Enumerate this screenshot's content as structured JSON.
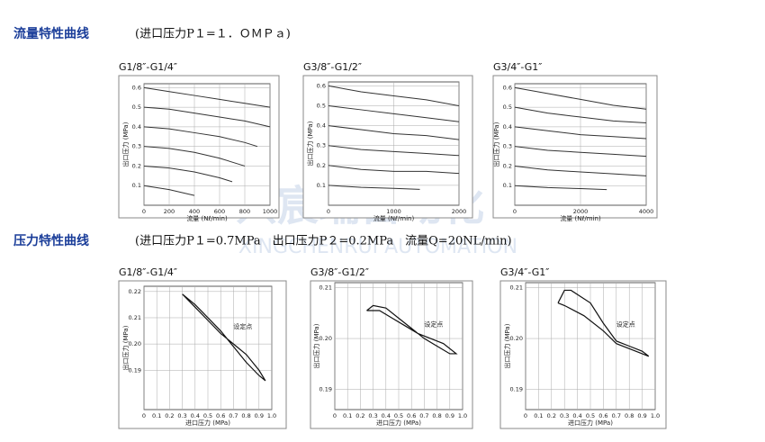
{
  "sections": [
    {
      "title": "流量特性曲线",
      "condition": "(进口压力P１=１．ＯＭＰａ)"
    },
    {
      "title": "压力特性曲线",
      "condition": "(进口压力P１=0.7MPa　出口压力P２=0.2MPa　流量Q=20NL/min)"
    }
  ],
  "watermark": {
    "name": "兴宸瑞自动化",
    "subtitle": "XINGCHENRUI AUTOMATION"
  },
  "chart_data": [
    {
      "type": "line",
      "title": "G1/8″-G1/4″",
      "xlabel": "流量 (Nℓ/min)",
      "ylabel": "出口压力 (MPa)",
      "xlim": [
        0,
        1000
      ],
      "ylim": [
        0,
        0.62
      ],
      "xticks": [
        0,
        200,
        400,
        600,
        800,
        1000
      ],
      "yticks": [
        0.1,
        0.2,
        0.3,
        0.4,
        0.5,
        0.6
      ],
      "grid": true,
      "color": "#333333",
      "series": [
        {
          "x": [
            0,
            200,
            400,
            600,
            800,
            1000
          ],
          "values": [
            0.6,
            0.58,
            0.56,
            0.54,
            0.52,
            0.5
          ]
        },
        {
          "x": [
            0,
            200,
            400,
            600,
            800,
            1000
          ],
          "values": [
            0.5,
            0.49,
            0.47,
            0.45,
            0.43,
            0.4
          ]
        },
        {
          "x": [
            0,
            200,
            400,
            600,
            800,
            900
          ],
          "values": [
            0.4,
            0.39,
            0.37,
            0.35,
            0.32,
            0.3
          ]
        },
        {
          "x": [
            0,
            200,
            400,
            600,
            800
          ],
          "values": [
            0.3,
            0.29,
            0.27,
            0.24,
            0.2
          ]
        },
        {
          "x": [
            0,
            200,
            400,
            600,
            700
          ],
          "values": [
            0.2,
            0.19,
            0.17,
            0.14,
            0.12
          ]
        },
        {
          "x": [
            0,
            200,
            400
          ],
          "values": [
            0.1,
            0.08,
            0.05
          ]
        }
      ]
    },
    {
      "type": "line",
      "title": "G3/8″-G1/2″",
      "xlabel": "流量 (Nℓ/min)",
      "ylabel": "出口压力 (MPa)",
      "xlim": [
        0,
        2000
      ],
      "ylim": [
        0,
        0.62
      ],
      "xticks": [
        0,
        1000,
        2000
      ],
      "yticks": [
        0.1,
        0.2,
        0.3,
        0.4,
        0.5,
        0.6
      ],
      "grid": true,
      "color": "#333333",
      "series": [
        {
          "x": [
            0,
            500,
            1000,
            1500,
            2000
          ],
          "values": [
            0.6,
            0.57,
            0.55,
            0.53,
            0.5
          ]
        },
        {
          "x": [
            0,
            500,
            1000,
            1500,
            2000
          ],
          "values": [
            0.5,
            0.48,
            0.46,
            0.44,
            0.42
          ]
        },
        {
          "x": [
            0,
            500,
            1000,
            1500,
            2000
          ],
          "values": [
            0.4,
            0.38,
            0.36,
            0.35,
            0.33
          ]
        },
        {
          "x": [
            0,
            500,
            1000,
            1500,
            2000
          ],
          "values": [
            0.3,
            0.28,
            0.27,
            0.26,
            0.25
          ]
        },
        {
          "x": [
            0,
            500,
            1000,
            1500,
            2000
          ],
          "values": [
            0.2,
            0.18,
            0.17,
            0.17,
            0.16
          ]
        },
        {
          "x": [
            0,
            500,
            1000,
            1400
          ],
          "values": [
            0.1,
            0.09,
            0.085,
            0.08
          ]
        }
      ]
    },
    {
      "type": "line",
      "title": "G3/4″-G1″",
      "xlabel": "流量 (Nℓ/min)",
      "ylabel": "出口压力 (MPa)",
      "xlim": [
        0,
        4000
      ],
      "ylim": [
        0,
        0.62
      ],
      "xticks": [
        0,
        2000,
        4000
      ],
      "yticks": [
        0.1,
        0.2,
        0.3,
        0.4,
        0.5,
        0.6
      ],
      "grid": true,
      "color": "#333333",
      "series": [
        {
          "x": [
            0,
            1000,
            2000,
            3000,
            4000
          ],
          "values": [
            0.6,
            0.57,
            0.54,
            0.51,
            0.49
          ]
        },
        {
          "x": [
            0,
            1000,
            2000,
            3000,
            4000
          ],
          "values": [
            0.5,
            0.47,
            0.45,
            0.43,
            0.42
          ]
        },
        {
          "x": [
            0,
            1000,
            2000,
            3000,
            4000
          ],
          "values": [
            0.4,
            0.38,
            0.36,
            0.35,
            0.34
          ]
        },
        {
          "x": [
            0,
            1000,
            2000,
            3000,
            4000
          ],
          "values": [
            0.3,
            0.28,
            0.27,
            0.26,
            0.25
          ]
        },
        {
          "x": [
            0,
            1000,
            2000,
            3000,
            4000
          ],
          "values": [
            0.2,
            0.18,
            0.17,
            0.16,
            0.15
          ]
        },
        {
          "x": [
            0,
            1000,
            2000,
            2800
          ],
          "values": [
            0.1,
            0.09,
            0.085,
            0.08
          ]
        }
      ]
    },
    {
      "type": "loop",
      "title": "G1/8″-G1/4″",
      "xlabel": "进口压力 (MPa)",
      "ylabel": "出口压力 (MPa)",
      "annotation": "设定点",
      "xlim": [
        0,
        1
      ],
      "ylim": [
        0.175,
        0.222
      ],
      "xticks": [
        0,
        0.1,
        0.2,
        0.3,
        0.4,
        0.5,
        0.6,
        0.7,
        0.8,
        0.9,
        {
          "value": 1,
          "label": "1.0"
        }
      ],
      "yticks": [
        0.19,
        {
          "value": 0.2,
          "label": "0.20"
        },
        0.21,
        0.22
      ],
      "grid": true,
      "color": "#111111",
      "series": [
        {
          "x": [
            0.3,
            0.4,
            0.5,
            0.6,
            0.7,
            0.8,
            0.9,
            0.95,
            0.9,
            0.8,
            0.7,
            0.6,
            0.5,
            0.4,
            0.3
          ],
          "values": [
            0.219,
            0.215,
            0.21,
            0.205,
            0.199,
            0.193,
            0.188,
            0.186,
            0.19,
            0.196,
            0.2,
            0.204,
            0.209,
            0.214,
            0.219
          ]
        }
      ]
    },
    {
      "type": "loop",
      "title": "G3/8″-G1/2″",
      "xlabel": "进口压力 (MPa)",
      "ylabel": "出口压力 (MPa)",
      "annotation": "设定点",
      "xlim": [
        0,
        1
      ],
      "ylim": [
        0.186,
        0.211
      ],
      "xticks": [
        0,
        0.1,
        0.2,
        0.3,
        0.4,
        0.5,
        0.6,
        0.7,
        0.8,
        0.9,
        {
          "value": 1,
          "label": "1.0"
        }
      ],
      "yticks": [
        0.19,
        {
          "value": 0.2,
          "label": "0.20"
        },
        0.21
      ],
      "grid": true,
      "color": "#111111",
      "series": [
        {
          "x": [
            0.25,
            0.3,
            0.4,
            0.5,
            0.6,
            0.7,
            0.8,
            0.9,
            0.95,
            0.85,
            0.75,
            0.65,
            0.55,
            0.45,
            0.35,
            0.25
          ],
          "values": [
            0.2055,
            0.2065,
            0.206,
            0.204,
            0.202,
            0.2,
            0.1985,
            0.197,
            0.197,
            0.199,
            0.2,
            0.201,
            0.2025,
            0.204,
            0.2055,
            0.2055
          ]
        }
      ]
    },
    {
      "type": "loop",
      "title": "G3/4″-G1″",
      "xlabel": "进口压力 (MPa)",
      "ylabel": "出口压力 (MPa)",
      "annotation": "设定点",
      "xlim": [
        0,
        1
      ],
      "ylim": [
        0.186,
        0.211
      ],
      "xticks": [
        0,
        0.1,
        0.2,
        0.3,
        0.4,
        0.5,
        0.6,
        0.7,
        0.8,
        0.9,
        {
          "value": 1,
          "label": "1.0"
        }
      ],
      "yticks": [
        0.19,
        {
          "value": 0.2,
          "label": "0.20"
        },
        0.21
      ],
      "grid": true,
      "color": "#111111",
      "series": [
        {
          "x": [
            0.25,
            0.3,
            0.35,
            0.5,
            0.6,
            0.7,
            0.8,
            0.9,
            0.95,
            0.8,
            0.7,
            0.6,
            0.45,
            0.3,
            0.25
          ],
          "values": [
            0.207,
            0.2095,
            0.2095,
            0.207,
            0.203,
            0.1995,
            0.1985,
            0.1975,
            0.1965,
            0.198,
            0.199,
            0.2015,
            0.2045,
            0.2065,
            0.207
          ]
        }
      ]
    }
  ]
}
